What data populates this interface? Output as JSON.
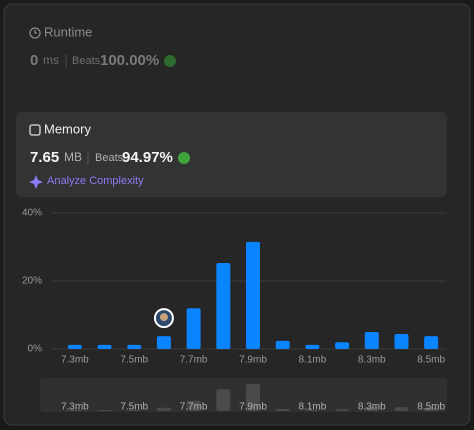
{
  "runtime": {
    "title": "Runtime",
    "value": "0",
    "unit": "ms",
    "beats_label": "Beats",
    "beats": "100.00%"
  },
  "memory": {
    "title": "Memory",
    "value": "7.65",
    "unit": "MB",
    "beats_label": "Beats",
    "beats": "94.97%",
    "link": "Analyze Complexity"
  },
  "chart_data": {
    "type": "bar",
    "categories": [
      "7.3mb",
      null,
      "7.5mb",
      null,
      "7.7mb",
      null,
      "7.9mb",
      null,
      "8.1mb",
      null,
      "8.3mb",
      null,
      "8.5mb"
    ],
    "values": [
      1.2,
      1.2,
      1.2,
      3.8,
      12,
      25.3,
      31.5,
      2.4,
      1.2,
      2,
      5,
      4.4,
      3.8
    ],
    "color": "#0a84ff",
    "ylim": [
      0,
      40
    ],
    "yticks": [
      {
        "value": 0,
        "label": "0%"
      },
      {
        "value": 20,
        "label": "20%"
      },
      {
        "value": 40,
        "label": "40%"
      }
    ],
    "grid": true
  }
}
